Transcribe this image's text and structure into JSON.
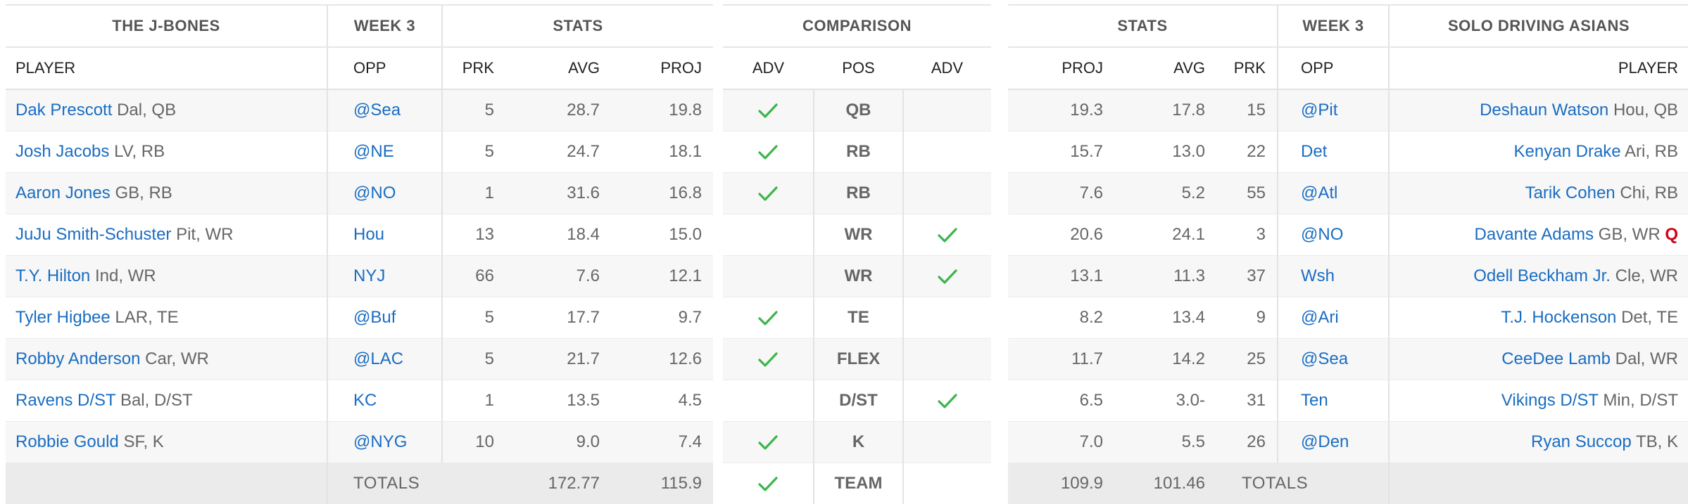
{
  "left": {
    "team": "THE J-BONES",
    "week": "WEEK 3",
    "stats": "STATS",
    "cols": {
      "player": "PLAYER",
      "opp": "OPP",
      "prk": "PRK",
      "avg": "AVG",
      "proj": "PROJ"
    },
    "rows": [
      {
        "name": "Dak Prescott",
        "meta": "Dal, QB",
        "opp": "@Sea",
        "prk": "5",
        "avg": "28.7",
        "proj": "19.8"
      },
      {
        "name": "Josh Jacobs",
        "meta": "LV, RB",
        "opp": "@NE",
        "prk": "5",
        "avg": "24.7",
        "proj": "18.1"
      },
      {
        "name": "Aaron Jones",
        "meta": "GB, RB",
        "opp": "@NO",
        "prk": "1",
        "avg": "31.6",
        "proj": "16.8"
      },
      {
        "name": "JuJu Smith-Schuster",
        "meta": "Pit, WR",
        "opp": "Hou",
        "prk": "13",
        "avg": "18.4",
        "proj": "15.0"
      },
      {
        "name": "T.Y. Hilton",
        "meta": "Ind, WR",
        "opp": "NYJ",
        "prk": "66",
        "avg": "7.6",
        "proj": "12.1"
      },
      {
        "name": "Tyler Higbee",
        "meta": "LAR, TE",
        "opp": "@Buf",
        "prk": "5",
        "avg": "17.7",
        "proj": "9.7"
      },
      {
        "name": "Robby Anderson",
        "meta": "Car, WR",
        "opp": "@LAC",
        "prk": "5",
        "avg": "21.7",
        "proj": "12.6"
      },
      {
        "name": "Ravens D/ST",
        "meta": "Bal, D/ST",
        "opp": "KC",
        "prk": "1",
        "avg": "13.5",
        "proj": "4.5"
      },
      {
        "name": "Robbie Gould",
        "meta": "SF, K",
        "opp": "@NYG",
        "prk": "10",
        "avg": "9.0",
        "proj": "7.4"
      }
    ],
    "totals": {
      "label": "TOTALS",
      "avg": "172.77",
      "proj": "115.9"
    }
  },
  "comparison": {
    "title": "COMPARISON",
    "cols": {
      "adv_left": "ADV",
      "pos": "POS",
      "adv_right": "ADV"
    },
    "rows": [
      {
        "pos": "QB",
        "left_adv": true,
        "right_adv": false
      },
      {
        "pos": "RB",
        "left_adv": true,
        "right_adv": false
      },
      {
        "pos": "RB",
        "left_adv": true,
        "right_adv": false
      },
      {
        "pos": "WR",
        "left_adv": false,
        "right_adv": true
      },
      {
        "pos": "WR",
        "left_adv": false,
        "right_adv": true
      },
      {
        "pos": "TE",
        "left_adv": true,
        "right_adv": false
      },
      {
        "pos": "FLEX",
        "left_adv": true,
        "right_adv": false
      },
      {
        "pos": "D/ST",
        "left_adv": false,
        "right_adv": true
      },
      {
        "pos": "K",
        "left_adv": true,
        "right_adv": false
      }
    ],
    "totals": {
      "pos": "TEAM",
      "left_adv": true,
      "right_adv": false
    }
  },
  "right": {
    "team": "SOLO DRIVING ASIANS",
    "week": "WEEK 3",
    "stats": "STATS",
    "cols": {
      "player": "PLAYER",
      "opp": "OPP",
      "prk": "PRK",
      "avg": "AVG",
      "proj": "PROJ"
    },
    "rows": [
      {
        "name": "Deshaun Watson",
        "meta": "Hou, QB",
        "opp": "@Pit",
        "prk": "15",
        "avg": "17.8",
        "proj": "19.3",
        "flag": ""
      },
      {
        "name": "Kenyan Drake",
        "meta": "Ari, RB",
        "opp": "Det",
        "prk": "22",
        "avg": "13.0",
        "proj": "15.7",
        "flag": ""
      },
      {
        "name": "Tarik Cohen",
        "meta": "Chi, RB",
        "opp": "@Atl",
        "prk": "55",
        "avg": "5.2",
        "proj": "7.6",
        "flag": ""
      },
      {
        "name": "Davante Adams",
        "meta": "GB, WR",
        "opp": "@NO",
        "prk": "3",
        "avg": "24.1",
        "proj": "20.6",
        "flag": "Q"
      },
      {
        "name": "Odell Beckham Jr.",
        "meta": "Cle, WR",
        "opp": "Wsh",
        "prk": "37",
        "avg": "11.3",
        "proj": "13.1",
        "flag": ""
      },
      {
        "name": "T.J. Hockenson",
        "meta": "Det, TE",
        "opp": "@Ari",
        "prk": "9",
        "avg": "13.4",
        "proj": "8.2",
        "flag": ""
      },
      {
        "name": "CeeDee Lamb",
        "meta": "Dal, WR",
        "opp": "@Sea",
        "prk": "25",
        "avg": "14.2",
        "proj": "11.7",
        "flag": ""
      },
      {
        "name": "Vikings D/ST",
        "meta": "Min, D/ST",
        "opp": "Ten",
        "prk": "31",
        "avg": "3.0-",
        "proj": "6.5",
        "flag": ""
      },
      {
        "name": "Ryan Succop",
        "meta": "TB, K",
        "opp": "@Den",
        "prk": "26",
        "avg": "5.5",
        "proj": "7.0",
        "flag": ""
      }
    ],
    "totals": {
      "label": "TOTALS",
      "avg": "101.46",
      "proj": "109.9"
    }
  },
  "colors": {
    "link": "#1a6dc2",
    "check": "#3bb54a",
    "injury": "#d0021b"
  }
}
